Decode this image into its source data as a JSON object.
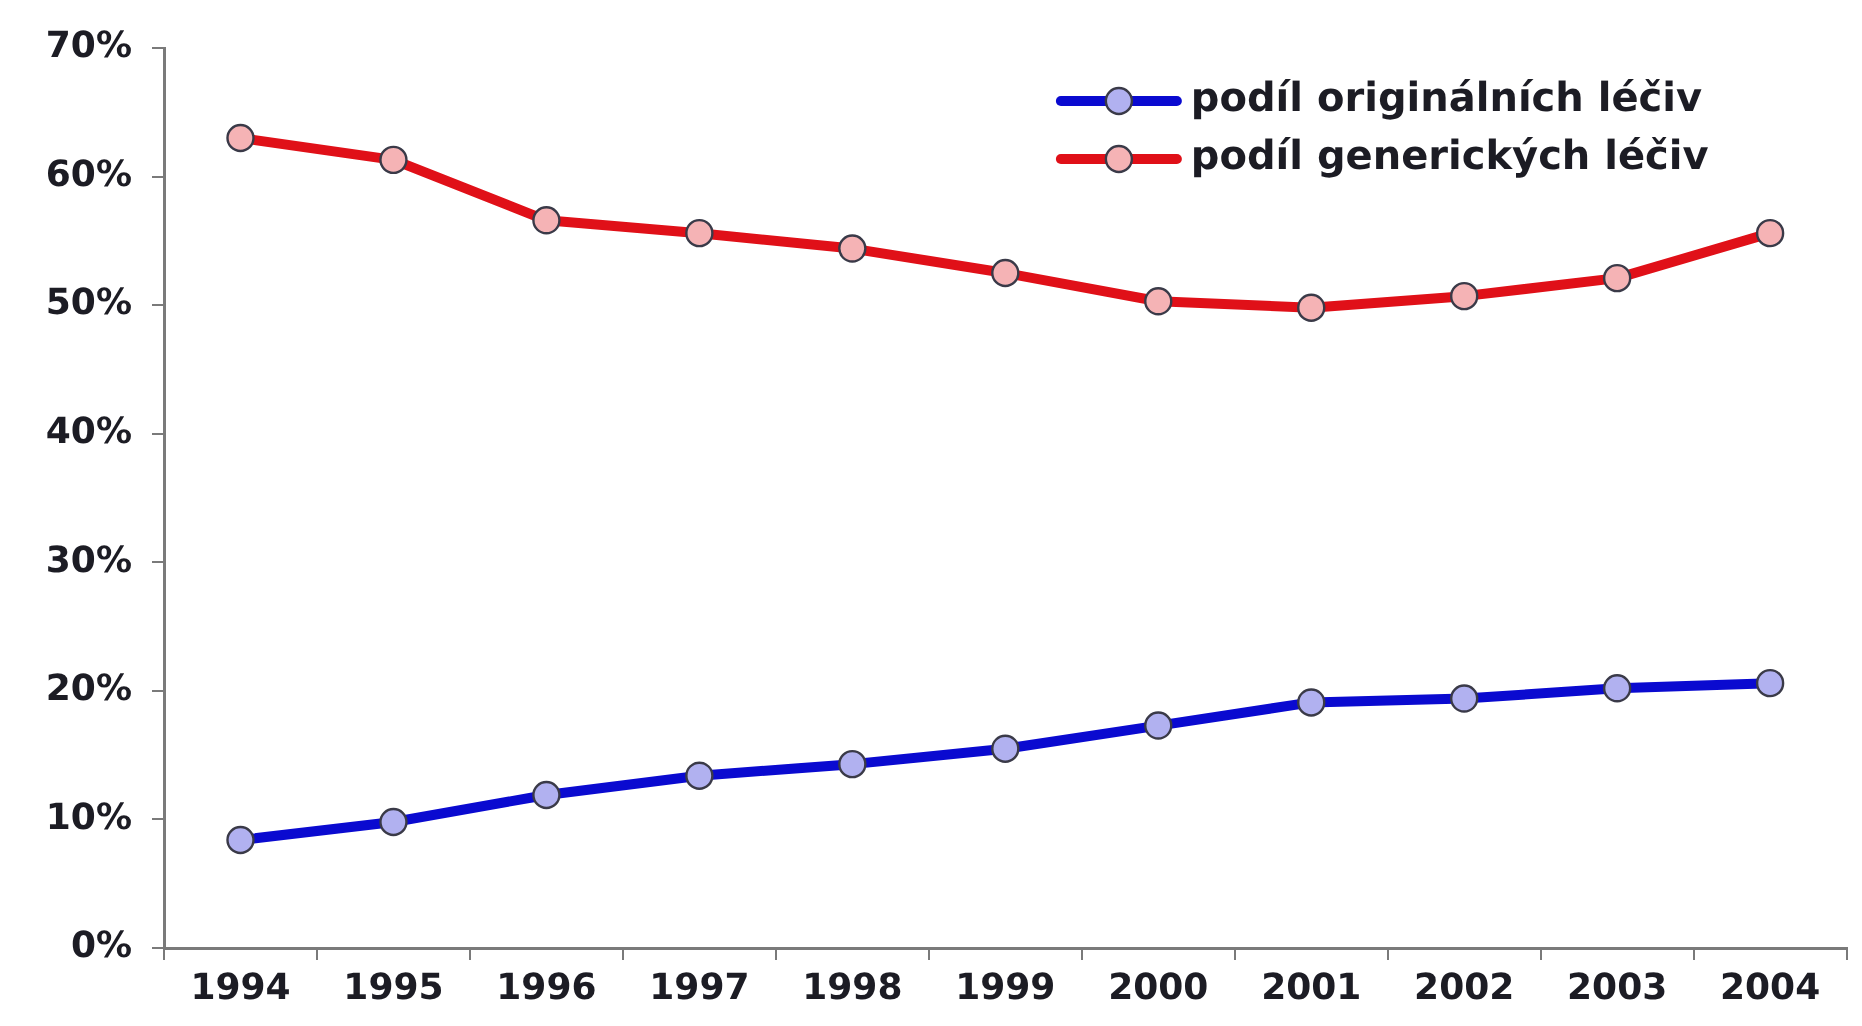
{
  "chart_data": {
    "type": "line",
    "categories": [
      "1994",
      "1995",
      "1996",
      "1997",
      "1998",
      "1999",
      "2000",
      "2001",
      "2002",
      "2003",
      "2004"
    ],
    "series": [
      {
        "name": "podíl originálních léčiv",
        "color": "#0a0ad0",
        "values": [
          8.4,
          9.8,
          11.9,
          13.4,
          14.3,
          15.5,
          17.3,
          19.1,
          19.4,
          20.2,
          20.6
        ]
      },
      {
        "name": "podíl generických léčiv",
        "color": "#e01018",
        "values": [
          63.0,
          61.3,
          56.6,
          55.6,
          54.4,
          52.5,
          50.3,
          49.8,
          50.7,
          52.1,
          55.6
        ]
      }
    ],
    "ylim": [
      0,
      70
    ],
    "yticks": [
      {
        "value": 0,
        "label": "0%"
      },
      {
        "value": 10,
        "label": "10%"
      },
      {
        "value": 20,
        "label": "20%"
      },
      {
        "value": 30,
        "label": "30%"
      },
      {
        "value": 40,
        "label": "40%"
      },
      {
        "value": 50,
        "label": "50%"
      },
      {
        "value": 60,
        "label": "60%"
      },
      {
        "value": 70,
        "label": "70%"
      }
    ],
    "grid": false,
    "legend": "top right",
    "marker": "circle",
    "line_style": "solid"
  }
}
